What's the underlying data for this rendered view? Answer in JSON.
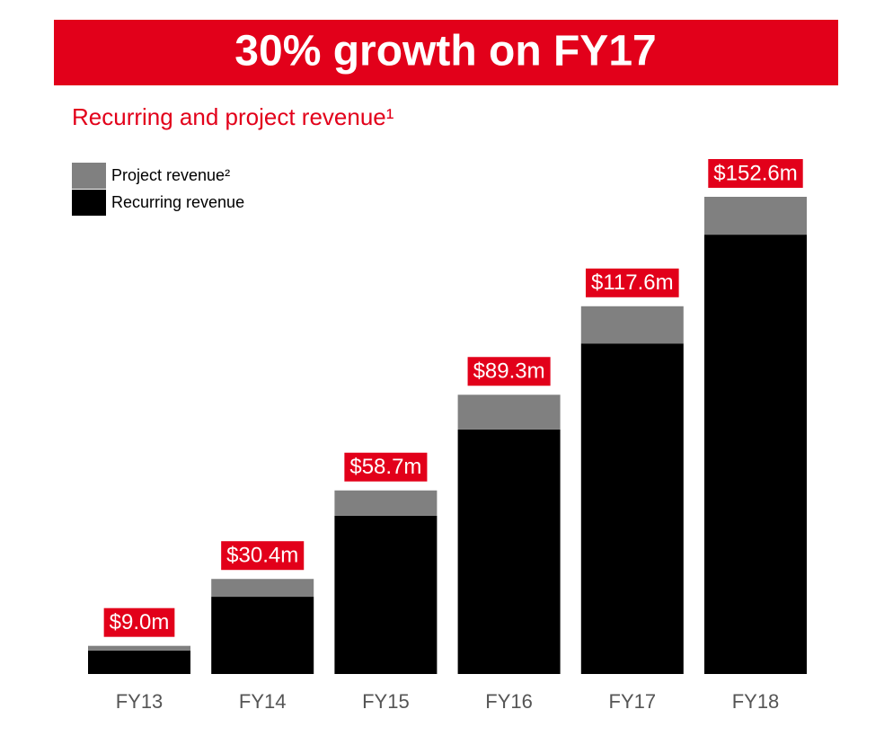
{
  "chart_data": {
    "type": "stacked_bar",
    "title": "30% growth on FY17",
    "subtitle": "Recurring and project revenue¹",
    "categories": [
      "FY13",
      "FY14",
      "FY15",
      "FY16",
      "FY17",
      "FY18"
    ],
    "series": [
      {
        "name": "Recurring revenue",
        "color": "#000000",
        "values": [
          7.5,
          24.7,
          50.6,
          78.2,
          105.7,
          140.5
        ]
      },
      {
        "name": "Project revenue²",
        "color": "#808080",
        "values": [
          1.5,
          5.7,
          8.1,
          11.1,
          11.9,
          12.1
        ]
      }
    ],
    "totals": {
      "values": [
        9.0,
        30.4,
        58.7,
        89.3,
        117.6,
        152.6
      ],
      "value_labels": [
        "$9.0m",
        "$30.4m",
        "$58.7m",
        "$89.3m",
        "$117.6m",
        "$152.6m"
      ],
      "color": "#e2001a"
    },
    "legend": "top-left"
  }
}
